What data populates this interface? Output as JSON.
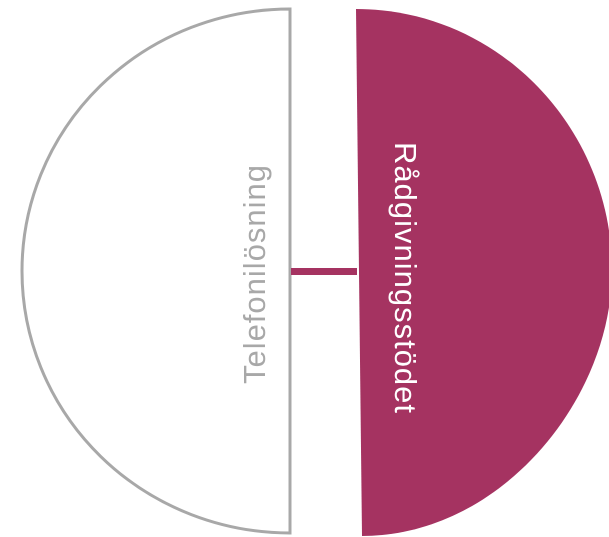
{
  "diagram": {
    "left_segment": {
      "label": "Telefonilösning",
      "stroke_color": "#a8a8a8",
      "fill_color": "#ffffff",
      "text_color": "#a8a8a8"
    },
    "right_segment": {
      "label": "Rådgivningsstödet",
      "fill_color": "#a53361",
      "text_color": "#ffffff"
    },
    "connector_color": "#a53361"
  }
}
